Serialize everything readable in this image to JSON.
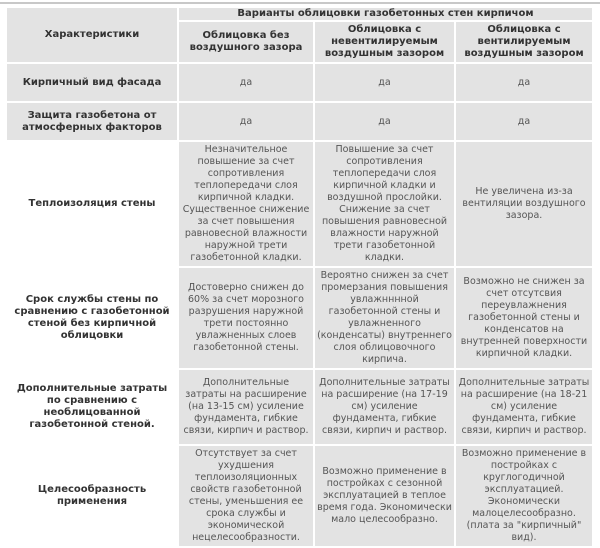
{
  "table": {
    "corner": "Характеристики",
    "group_header": "Варианты облицовки газобетонных стен кирпичом",
    "columns": [
      "Облицовка без воздушного зазора",
      "Облицовка с невентилируемым воздушным зазором",
      "Облицовка с вентилируемым воздушным зазором"
    ],
    "rows": [
      {
        "label": "Кирпичный вид фасада",
        "cells": [
          "да",
          "да",
          "да"
        ]
      },
      {
        "label": "Защита газобетона от атмосферных факторов",
        "cells": [
          "да",
          "да",
          "да"
        ]
      },
      {
        "label": "Теплоизоляция стены",
        "cells": [
          "Незначительное повышение за счет сопротивления теплопередачи слоя кирпичной кладки. Существенное снижение за счет повышения равновесной влажности наружной трети газобетонной кладки.",
          "Повышение за счет сопротивления теплопередачи слоя кирпичной кладки и воздушной прослойки. Снижение за счет повышения равновесной влажности наружной трети газобетонной кладки.",
          "Не увеличена из-за вентиляции воздушного зазора."
        ]
      },
      {
        "label": "Срок службы стены по сравнению с газобетонной стеной без кирпичной облицовки",
        "cells": [
          "Достоверно снижен до 60% за счет морозного разрушения наружной трети постоянно увлажненных слоев газобетонной стены.",
          "Вероятно снижен за счет промерзания повышения увлажнннной газобетонной стены и увлажненного (конденсаты) внутреннего слоя облицовочного кирпича.",
          "Возможно не снижен за счет отсутсвия переувлажнения газобетонной стены и конденсатов на внутренней поверхности кирпичной кладки."
        ]
      },
      {
        "label": "Дополнительные затраты по сравнению с необлицованной газобетонной стеной.",
        "cells": [
          "Дополнительные затраты на расширение (на 13-15 см) усиление фундамента, гибкие связи, кирпич и раствор.",
          "Дополнительные затраты на расширение (на 17-19 см) усиление фундамента, гибкие связи, кирпич и раствор.",
          "Дополнительные затраты на расширение (на 18-21 см) усиление фундамента, гибкие связи, кирпич и раствор."
        ]
      },
      {
        "label": "Целесообразность применения",
        "cells": [
          "Отсутствует за счет ухудшения теплоизоляционных свойств газобетонной стены, уменьшения ее срока службы и экономической нецелесообразности.",
          "Возможно применение в постройках с сезонной эксплуатацией в теплое время года. Экономически мало целесообразно.",
          "Возможно применение в постройках с круглогодичной эксплуатацией. Экономически малоцелесообразно. (плата за \"кирпичный\" вид)."
        ]
      }
    ]
  }
}
